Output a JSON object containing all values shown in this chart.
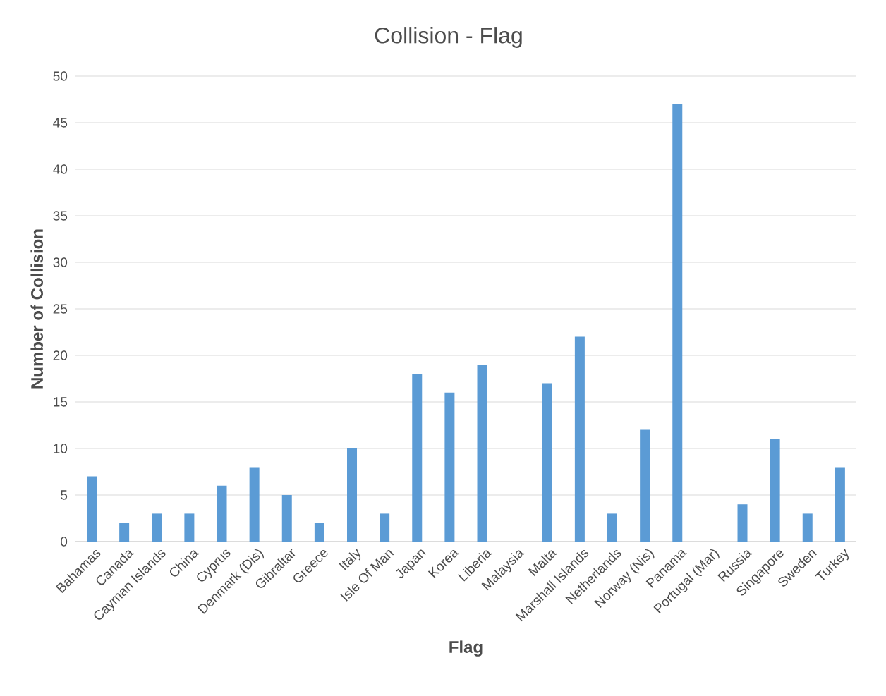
{
  "chart_data": {
    "type": "bar",
    "title": "Collision - Flag",
    "xlabel": "Flag",
    "ylabel": "Number of Collision",
    "categories": [
      "Bahamas",
      "Canada",
      "Cayman Islands",
      "China",
      "Cyprus",
      "Denmark (Dis)",
      "Gibraltar",
      "Greece",
      "Italy",
      "Isle Of Man",
      "Japan",
      "Korea",
      "Liberia",
      "Malaysia",
      "Malta",
      "Marshall Islands",
      "Netherlands",
      "Norway (Nis)",
      "Panama",
      "Portugal (Mar)",
      "Russia",
      "Singapore",
      "Sweden",
      "Turkey"
    ],
    "values": [
      7,
      2,
      3,
      3,
      6,
      8,
      5,
      2,
      10,
      3,
      18,
      16,
      19,
      0,
      17,
      22,
      3,
      12,
      47,
      0,
      4,
      11,
      3,
      8
    ],
    "color": "#5b9bd5",
    "ylim": [
      0,
      50
    ],
    "yticks": [
      0,
      5,
      10,
      15,
      20,
      25,
      30,
      35,
      40,
      45,
      50
    ],
    "grid": "y"
  }
}
